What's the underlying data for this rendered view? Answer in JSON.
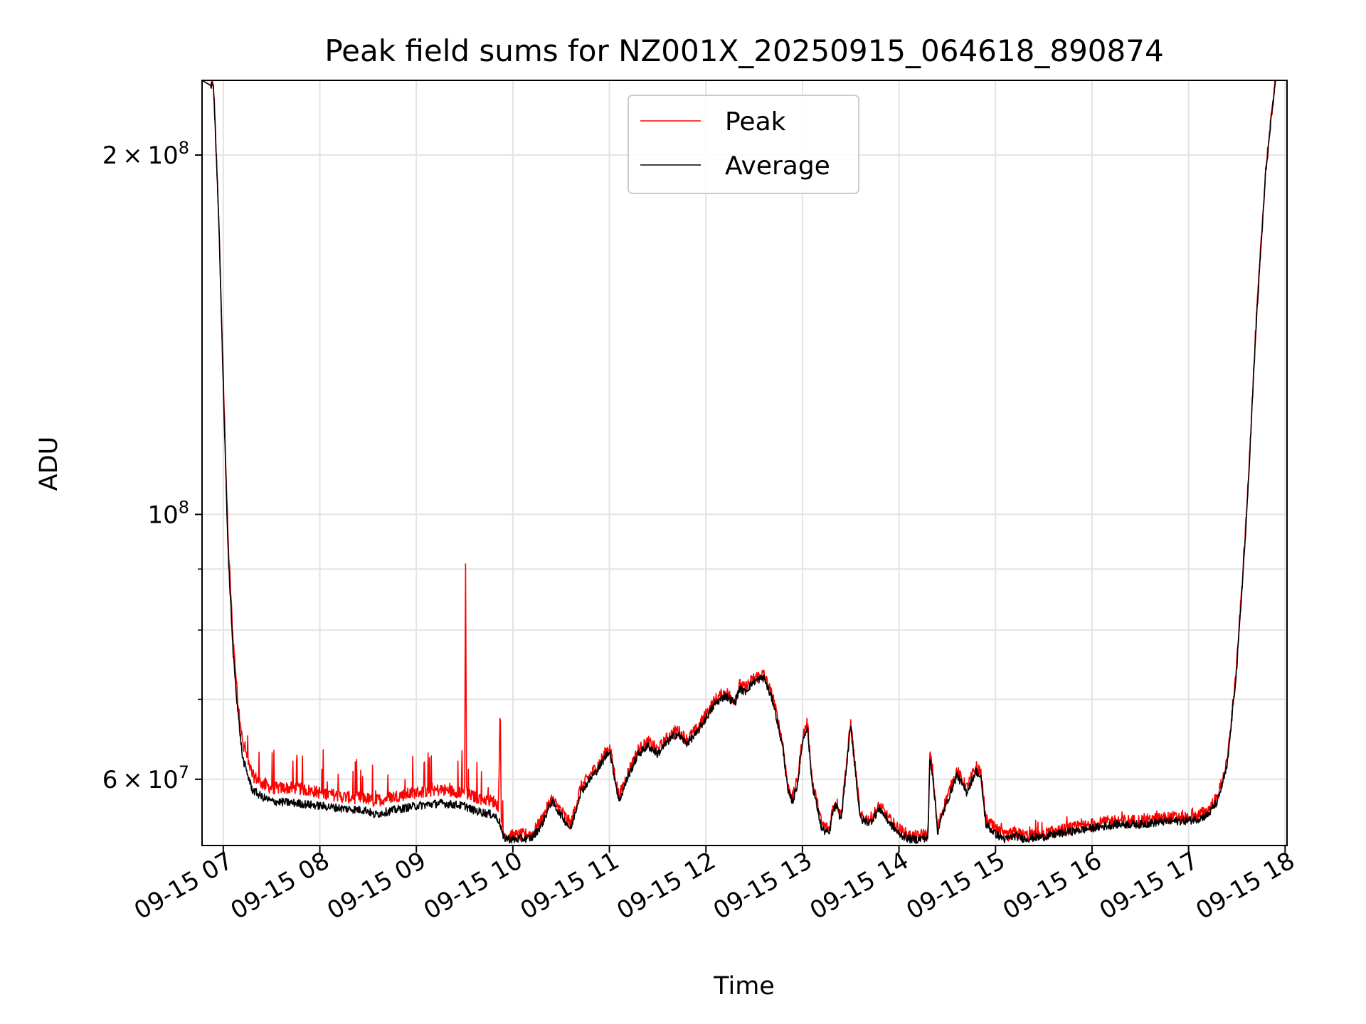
{
  "chart_data": {
    "type": "line",
    "title": "Peak field sums for NZ001X_20250915_064618_890874",
    "xlabel": "Time",
    "ylabel": "ADU",
    "yscale": "log",
    "ylim": [
      52800000,
      231000000
    ],
    "xlim_hours": [
      6.78,
      18.02
    ],
    "grid": true,
    "legend_position": "upper center",
    "x_ticks": [
      {
        "hour": 7,
        "label": "09-15 07"
      },
      {
        "hour": 8,
        "label": "09-15 08"
      },
      {
        "hour": 9,
        "label": "09-15 09"
      },
      {
        "hour": 10,
        "label": "09-15 10"
      },
      {
        "hour": 11,
        "label": "09-15 11"
      },
      {
        "hour": 12,
        "label": "09-15 12"
      },
      {
        "hour": 13,
        "label": "09-15 13"
      },
      {
        "hour": 14,
        "label": "09-15 14"
      },
      {
        "hour": 15,
        "label": "09-15 15"
      },
      {
        "hour": 16,
        "label": "09-15 16"
      },
      {
        "hour": 17,
        "label": "09-15 17"
      },
      {
        "hour": 18,
        "label": "09-15 18"
      }
    ],
    "y_major_ticks": [
      {
        "value": 200000000,
        "mantissa": "2",
        "exponent": "8"
      },
      {
        "value": 100000000,
        "mantissa": "",
        "exponent": "8"
      },
      {
        "value": 60000000,
        "mantissa": "6",
        "exponent": "7"
      }
    ],
    "y_minor_ticks": [
      70000000,
      80000000,
      90000000
    ],
    "series": [
      {
        "name": "Peak",
        "color": "#ff0000",
        "hours": [
          6.78,
          6.9,
          6.95,
          7.0,
          7.05,
          7.1,
          7.15,
          7.2,
          7.3,
          7.4,
          7.5,
          7.75,
          8.0,
          8.25,
          8.5,
          8.55,
          8.75,
          9.0,
          9.25,
          9.5,
          9.51,
          9.52,
          9.53,
          9.6,
          9.8,
          9.85,
          9.87,
          9.88,
          9.9,
          9.95,
          10.0,
          10.2,
          10.3,
          10.4,
          10.5,
          10.6,
          10.7,
          10.8,
          10.9,
          11.0,
          11.1,
          11.2,
          11.3,
          11.4,
          11.5,
          11.6,
          11.7,
          11.8,
          11.9,
          12.0,
          12.1,
          12.2,
          12.3,
          12.35,
          12.4,
          12.5,
          12.6,
          12.7,
          12.8,
          12.85,
          12.9,
          12.95,
          13.0,
          13.05,
          13.1,
          13.2,
          13.28,
          13.3,
          13.32,
          13.35,
          13.4,
          13.5,
          13.6,
          13.7,
          13.8,
          13.9,
          14.0,
          14.1,
          14.2,
          14.25,
          14.3,
          14.32,
          14.35,
          14.4,
          14.45,
          14.5,
          14.6,
          14.7,
          14.8,
          14.85,
          14.9,
          15.0,
          15.1,
          15.2,
          15.3,
          15.5,
          15.75,
          16.0,
          16.25,
          16.5,
          16.75,
          17.0,
          17.1,
          17.2,
          17.3,
          17.4,
          17.5,
          17.6,
          17.7,
          17.8,
          17.9,
          18.02
        ],
        "values": [
          231000000,
          228000000,
          180000000,
          130000000,
          95000000,
          79000000,
          70000000,
          64500000,
          60500000,
          59500000,
          59000000,
          59000000,
          58500000,
          58000000,
          57800000,
          57500000,
          58000000,
          58500000,
          58800000,
          58500000,
          92000000,
          58500000,
          58300000,
          58000000,
          57500000,
          57000000,
          69500000,
          55500000,
          54000000,
          53900000,
          53800000,
          54000000,
          55500000,
          57800000,
          56500000,
          55000000,
          59000000,
          60500000,
          62000000,
          64000000,
          58000000,
          61000000,
          63500000,
          64500000,
          63500000,
          65000000,
          66000000,
          64800000,
          66000000,
          68000000,
          70000000,
          71000000,
          70000000,
          72000000,
          71500000,
          73000000,
          73500000,
          70000000,
          64000000,
          59000000,
          58000000,
          60000000,
          65000000,
          67000000,
          60000000,
          55000000,
          54500000,
          56000000,
          57000000,
          57500000,
          56000000,
          67000000,
          55800000,
          55500000,
          57000000,
          55500000,
          54500000,
          53800000,
          53700000,
          54000000,
          53800000,
          63000000,
          61000000,
          54500000,
          56500000,
          58000000,
          61000000,
          59000000,
          61500000,
          60500000,
          55500000,
          54500000,
          53700000,
          54200000,
          53800000,
          54000000,
          54500000,
          55000000,
          55400000,
          55400000,
          55700000,
          55800000,
          56000000,
          56500000,
          58000000,
          62000000,
          75000000,
          100000000,
          145000000,
          195000000,
          231000000,
          231000000
        ]
      },
      {
        "name": "Average",
        "color": "#000000",
        "hours": [
          6.78,
          6.9,
          6.95,
          7.0,
          7.05,
          7.1,
          7.15,
          7.2,
          7.3,
          7.4,
          7.5,
          7.75,
          8.0,
          8.25,
          8.5,
          8.55,
          8.75,
          9.0,
          9.25,
          9.5,
          9.51,
          9.52,
          9.53,
          9.6,
          9.8,
          9.85,
          9.87,
          9.88,
          9.9,
          9.95,
          10.0,
          10.2,
          10.3,
          10.4,
          10.5,
          10.6,
          10.7,
          10.8,
          10.9,
          11.0,
          11.1,
          11.2,
          11.3,
          11.4,
          11.5,
          11.6,
          11.7,
          11.8,
          11.9,
          12.0,
          12.1,
          12.2,
          12.3,
          12.35,
          12.4,
          12.5,
          12.6,
          12.7,
          12.8,
          12.85,
          12.9,
          12.95,
          13.0,
          13.05,
          13.1,
          13.2,
          13.28,
          13.3,
          13.32,
          13.35,
          13.4,
          13.5,
          13.6,
          13.7,
          13.8,
          13.9,
          14.0,
          14.1,
          14.2,
          14.25,
          14.3,
          14.32,
          14.35,
          14.4,
          14.45,
          14.5,
          14.6,
          14.7,
          14.8,
          14.85,
          14.9,
          15.0,
          15.1,
          15.2,
          15.3,
          15.5,
          15.75,
          16.0,
          16.25,
          16.5,
          16.75,
          17.0,
          17.1,
          17.2,
          17.3,
          17.4,
          17.5,
          17.6,
          17.7,
          17.8,
          17.9,
          18.02
        ],
        "values": [
          231000000,
          228000000,
          180000000,
          128000000,
          93000000,
          77000000,
          68500000,
          62500000,
          58800000,
          58000000,
          57500000,
          57300000,
          57000000,
          56700000,
          56500000,
          56000000,
          56500000,
          57000000,
          57300000,
          57000000,
          57000000,
          57000000,
          56800000,
          56500000,
          56000000,
          55500000,
          55000000,
          54500000,
          53600000,
          53500000,
          53400000,
          53600000,
          55000000,
          57500000,
          56000000,
          54500000,
          58500000,
          60000000,
          61500000,
          63500000,
          57500000,
          60500000,
          63000000,
          64000000,
          63000000,
          64500000,
          65500000,
          64300000,
          65500000,
          67500000,
          69500000,
          70500000,
          69500000,
          71500000,
          71000000,
          72500000,
          73000000,
          69500000,
          63500000,
          58500000,
          57500000,
          59500000,
          64500000,
          66500000,
          59500000,
          54500000,
          54000000,
          55500000,
          56500000,
          57000000,
          55500000,
          66500000,
          55500000,
          55200000,
          56700000,
          55200000,
          54000000,
          53500000,
          53400000,
          53600000,
          53500000,
          62500000,
          60500000,
          54200000,
          56000000,
          57500000,
          60500000,
          58500000,
          61000000,
          60000000,
          55000000,
          54000000,
          53400000,
          53800000,
          53500000,
          53700000,
          54200000,
          54600000,
          55000000,
          55000000,
          55300000,
          55400000,
          55600000,
          56000000,
          57500000,
          61500000,
          74500000,
          99000000,
          144000000,
          194000000,
          231000000,
          231000000
        ]
      }
    ]
  }
}
